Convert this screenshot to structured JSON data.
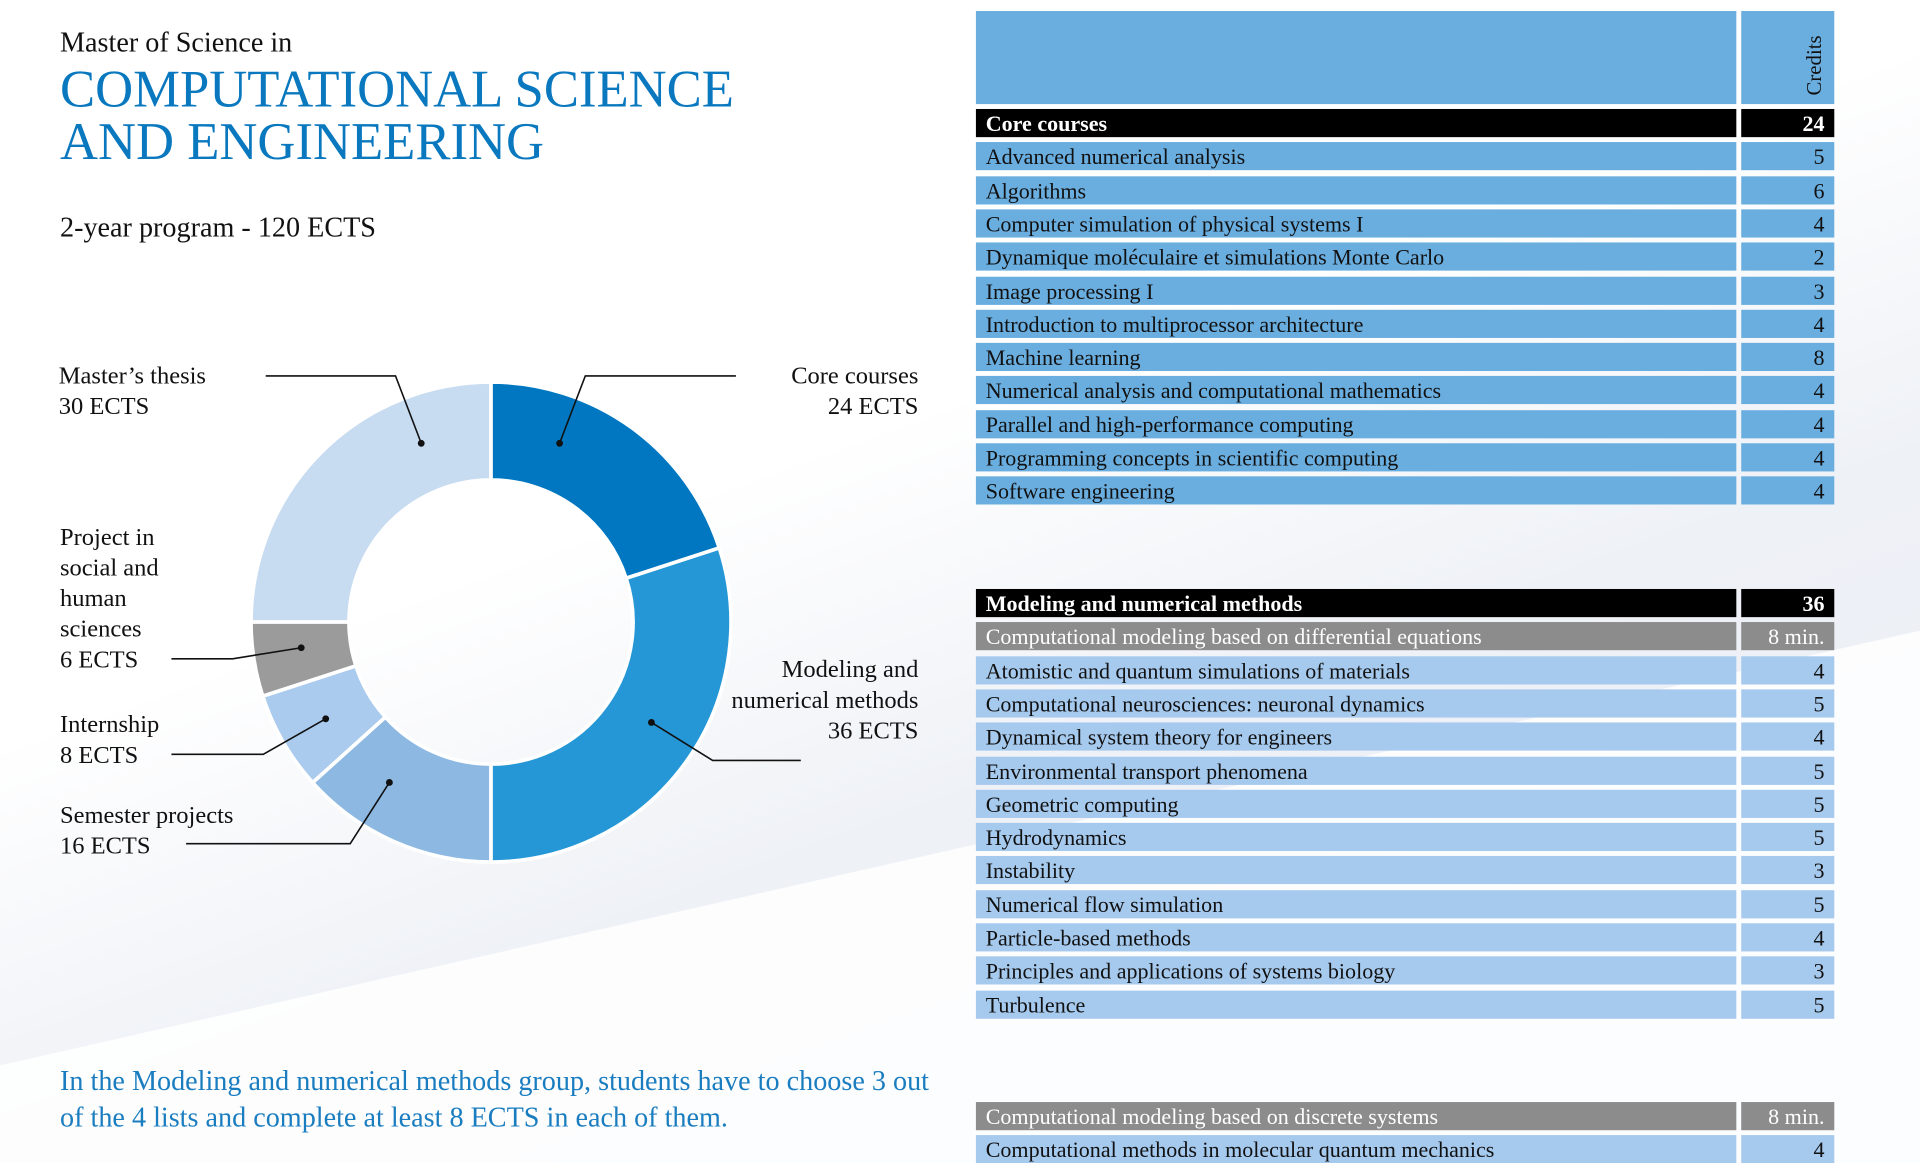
{
  "header": {
    "subtitle": "Master of Science in",
    "title_lines": [
      "COMPUTATIONAL SCIENCE",
      "AND ENGINEERING"
    ],
    "program": "2-year program - 120 ECTS"
  },
  "chart_data": {
    "type": "donut",
    "categories": [
      "Core courses",
      "Modeling and numerical methods",
      "Semester projects",
      "Internship",
      "Project in social and human sciences",
      "Master’s thesis"
    ],
    "values": [
      24,
      36,
      16,
      8,
      6,
      30
    ],
    "value_labels": [
      "24 ECTS",
      "36 ECTS",
      "16 ECTS",
      "8 ECTS",
      "6 ECTS",
      "30 ECTS"
    ],
    "colors": [
      "#0077c0",
      "#2597d6",
      "#8cb8e2",
      "#aacbee",
      "#9b9b9b",
      "#c7dbf1"
    ]
  },
  "credits_header": "Credits",
  "tables": [
    {
      "title": "Core courses",
      "credits": 24,
      "groups": [
        {
          "rows": [
            [
              "Advanced numerical  analysis",
              5
            ],
            [
              "Algorithms",
              6
            ],
            [
              "Computer simulation of physical systems I",
              4
            ],
            [
              "Dynamique moléculaire et simulations Monte Carlo",
              2
            ],
            [
              "Image processing I",
              3
            ],
            [
              "Introduction to multiprocessor architecture",
              4
            ],
            [
              "Machine learning",
              8
            ],
            [
              "Numerical analysis and computational mathematics",
              4
            ],
            [
              "Parallel and high-performance computing",
              4
            ],
            [
              "Programming concepts in scientific computing",
              4
            ],
            [
              "Software engineering",
              4
            ]
          ]
        }
      ]
    },
    {
      "title": "Modeling and numerical methods",
      "credits": 36,
      "groups": [
        {
          "title": "Computational modeling based on differential equations",
          "credits": "8 min.",
          "rows": [
            [
              "Atomistic and quantum simulations of materials",
              4
            ],
            [
              "Computational neurosciences: neuronal dynamics",
              5
            ],
            [
              "Dynamical system theory for engineers",
              4
            ],
            [
              "Environmental transport phenomena",
              5
            ],
            [
              "Geometric computing",
              5
            ],
            [
              "Hydrodynamics",
              5
            ],
            [
              "Instability",
              3
            ],
            [
              "Numerical flow simulation",
              5
            ],
            [
              "Particle-based methods",
              4
            ],
            [
              "Principles and applications of systems biology",
              3
            ],
            [
              "Turbulence",
              5
            ]
          ]
        }
      ]
    },
    {
      "groups": [
        {
          "title": "Computational modeling based on discrete systems",
          "credits": "8 min.",
          "rows": [
            [
              "Computational methods in molecular quantum mechanics",
              4
            ]
          ]
        }
      ]
    }
  ],
  "note": "In the Modeling and numerical methods group, students have to choose 3 out of the 4 lists and complete at least 8 ECTS in each of them."
}
